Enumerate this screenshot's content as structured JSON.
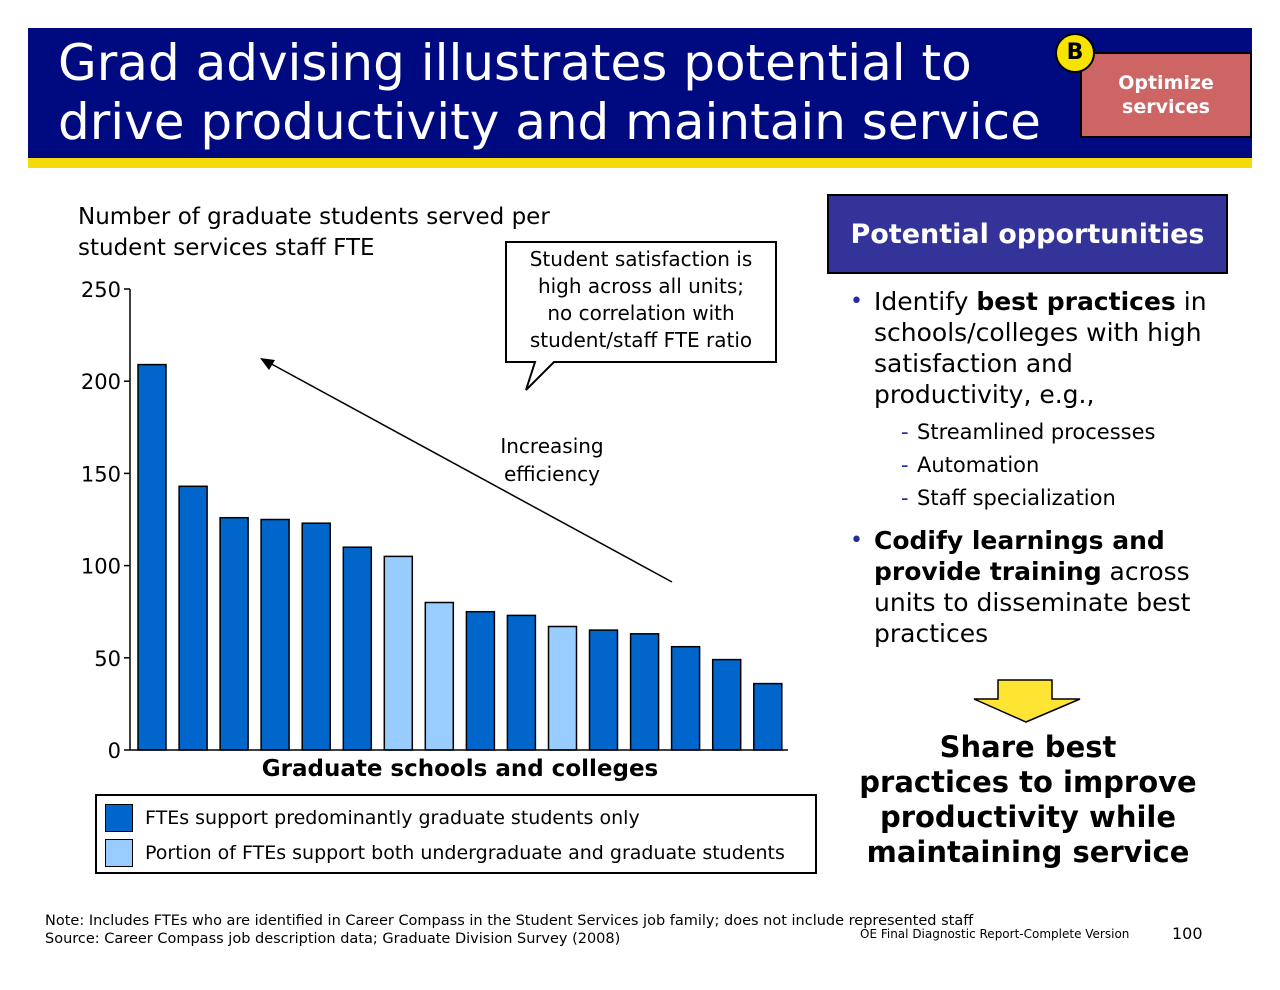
{
  "header": {
    "title": "Grad advising illustrates potential to\ndrive productivity and maintain service",
    "badge": "B",
    "tag": "Optimize\nservices"
  },
  "chart_data": {
    "type": "bar",
    "title": "Number of graduate students served per\nstudent services staff FTE",
    "xlabel": "Graduate schools and colleges",
    "ylabel": "",
    "ylim": [
      0,
      250
    ],
    "yticks": [
      0,
      50,
      100,
      150,
      200,
      250
    ],
    "values": [
      209,
      143,
      126,
      125,
      123,
      110,
      105,
      80,
      75,
      73,
      67,
      65,
      63,
      56,
      49,
      36
    ],
    "bar_types": [
      "grad",
      "grad",
      "grad",
      "grad",
      "grad",
      "grad",
      "both",
      "both",
      "grad",
      "grad",
      "both",
      "grad",
      "grad",
      "grad",
      "grad",
      "grad"
    ],
    "legend": [
      {
        "key": "grad",
        "label": "FTEs support predominantly graduate students only",
        "color": "#0066cc"
      },
      {
        "key": "both",
        "label": "Portion of FTEs support both undergraduate and graduate students",
        "color": "#99ccff"
      }
    ],
    "callout": "Student satisfaction is\nhigh across all units;\nno correlation with\nstudent/staff FTE ratio",
    "trend_label": "Increasing\nefficiency"
  },
  "opportunities": {
    "header": "Potential opportunities",
    "bullet1": {
      "pre": "Identify ",
      "bold": "best practices",
      "post": " in schools/colleges with high satisfaction and productivity, e.g.,"
    },
    "sub_items": [
      "Streamlined processes",
      "Automation",
      "Staff specialization"
    ],
    "bullet2": {
      "bold": "Codify learnings and provide training",
      "post": " across units to disseminate best practices"
    }
  },
  "conclusion": "Share best\npractices to improve\nproductivity while\nmaintaining service",
  "footer": {
    "note": "Note: Includes FTEs who are identified in Career Compass in the Student Services job family; does not include represented staff",
    "source": "Source: Career Compass job description data; Graduate Division Survey (2008)",
    "report": "OE Final Diagnostic Report-Complete Version",
    "page": "100"
  },
  "colors": {
    "header_bg": "#000a80",
    "stripe": "#f5d90a",
    "tag_bg": "#cd6565",
    "opp_header_bg": "#333399",
    "grad_bar": "#0066cc",
    "both_bar": "#99ccff",
    "arrow_fill": "#ffe533"
  }
}
